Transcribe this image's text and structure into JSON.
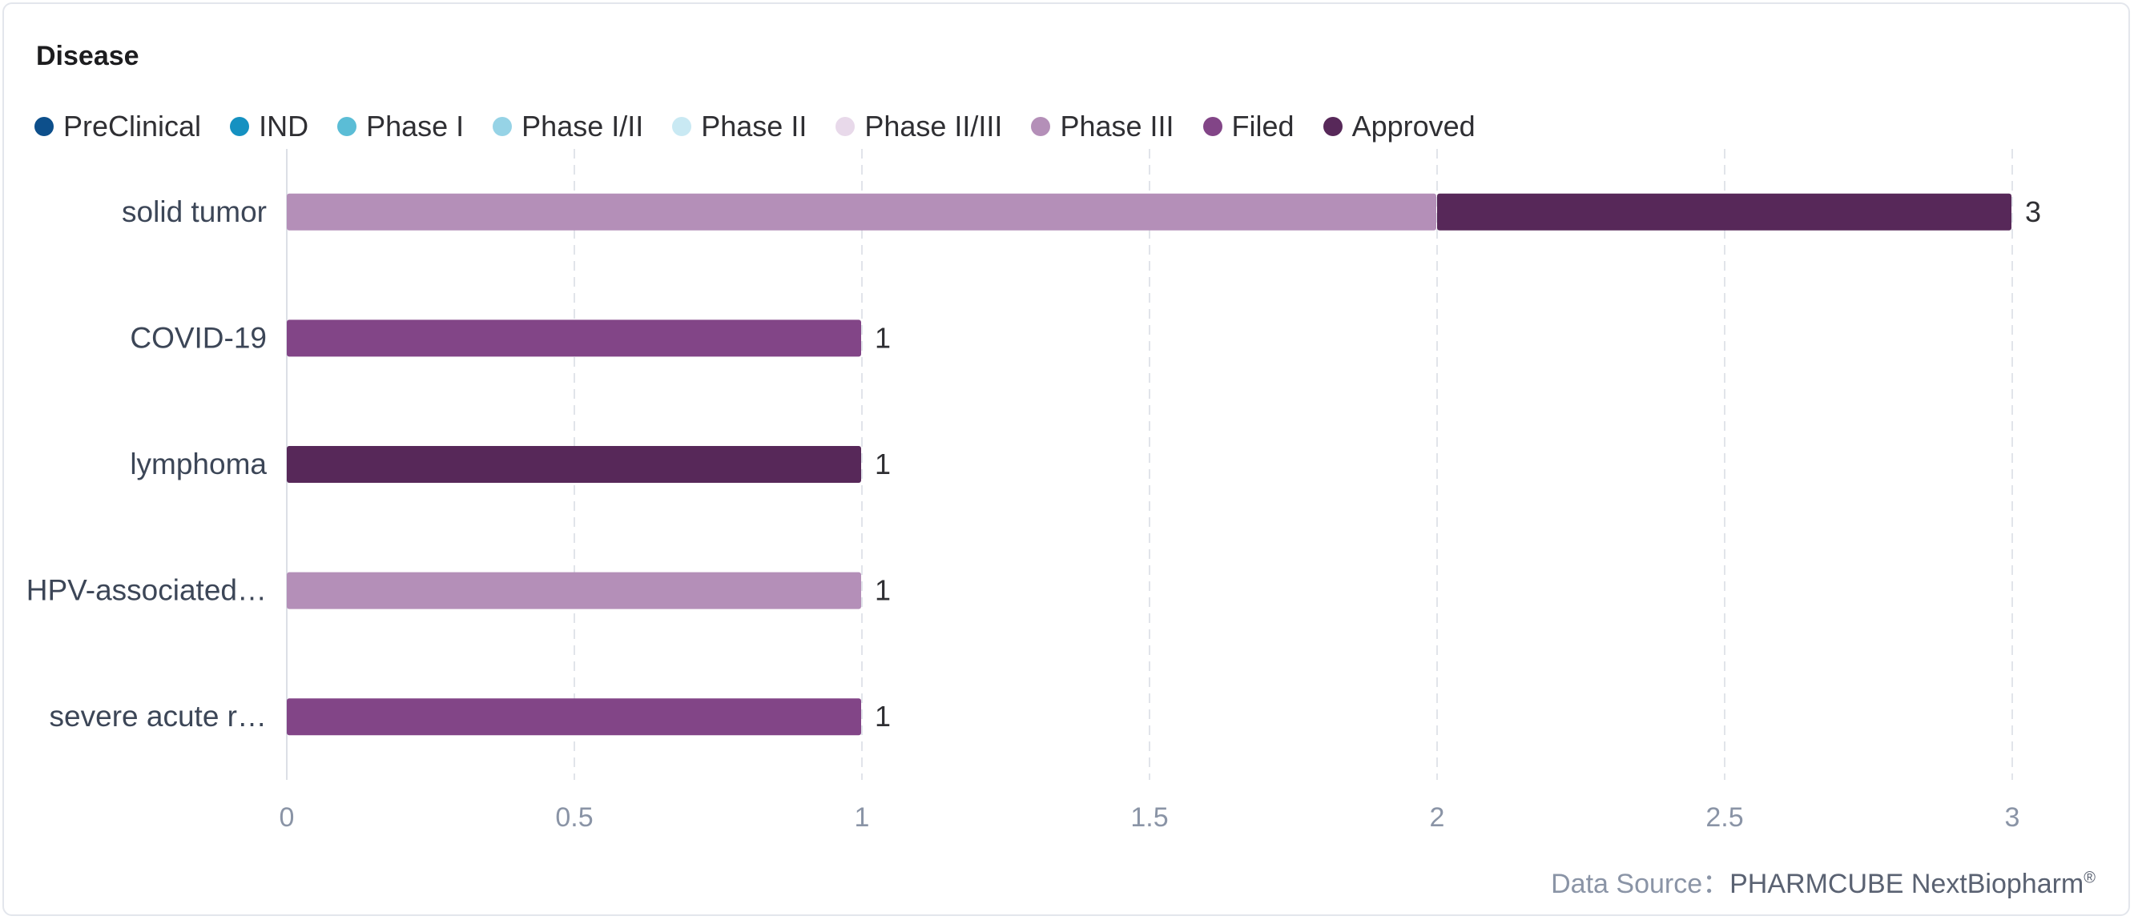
{
  "chart_data": {
    "type": "bar",
    "orientation": "horizontal",
    "stacked": true,
    "title": "Disease",
    "categories": [
      "solid tumor",
      "COVID-19",
      "lymphoma",
      "HPV-associated…",
      "severe acute r…"
    ],
    "series": [
      {
        "name": "PreClinical",
        "color": "#0d4f8b",
        "values": [
          0,
          0,
          0,
          0,
          0
        ]
      },
      {
        "name": "IND",
        "color": "#1591c1",
        "values": [
          0,
          0,
          0,
          0,
          0
        ]
      },
      {
        "name": "Phase I",
        "color": "#5bbdd6",
        "values": [
          0,
          0,
          0,
          0,
          0
        ]
      },
      {
        "name": "Phase I/II",
        "color": "#96d3e6",
        "values": [
          0,
          0,
          0,
          0,
          0
        ]
      },
      {
        "name": "Phase II",
        "color": "#c9e9f3",
        "values": [
          0,
          0,
          0,
          0,
          0
        ]
      },
      {
        "name": "Phase II/III",
        "color": "#e8d9ea",
        "values": [
          0,
          0,
          0,
          0,
          0
        ]
      },
      {
        "name": "Phase III",
        "color": "#b48fb8",
        "values": [
          2,
          0,
          0,
          1,
          0
        ]
      },
      {
        "name": "Filed",
        "color": "#824587",
        "values": [
          0,
          1,
          0,
          0,
          1
        ]
      },
      {
        "name": "Approved",
        "color": "#572859",
        "values": [
          1,
          0,
          1,
          0,
          0
        ]
      }
    ],
    "totals": [
      3,
      1,
      1,
      1,
      1
    ],
    "xlim": [
      0,
      3
    ],
    "xticks": [
      0,
      0.5,
      1,
      1.5,
      2,
      2.5,
      3
    ],
    "xtick_labels": [
      "0",
      "0.5",
      "1",
      "1.5",
      "2",
      "2.5",
      "3"
    ],
    "grid": "vertical dashed",
    "legend_position": "top-left"
  },
  "footer": {
    "source_label": "Data Source：",
    "source_brand": "PHARMCUBE NextBiopharm",
    "registered_mark": "®"
  }
}
